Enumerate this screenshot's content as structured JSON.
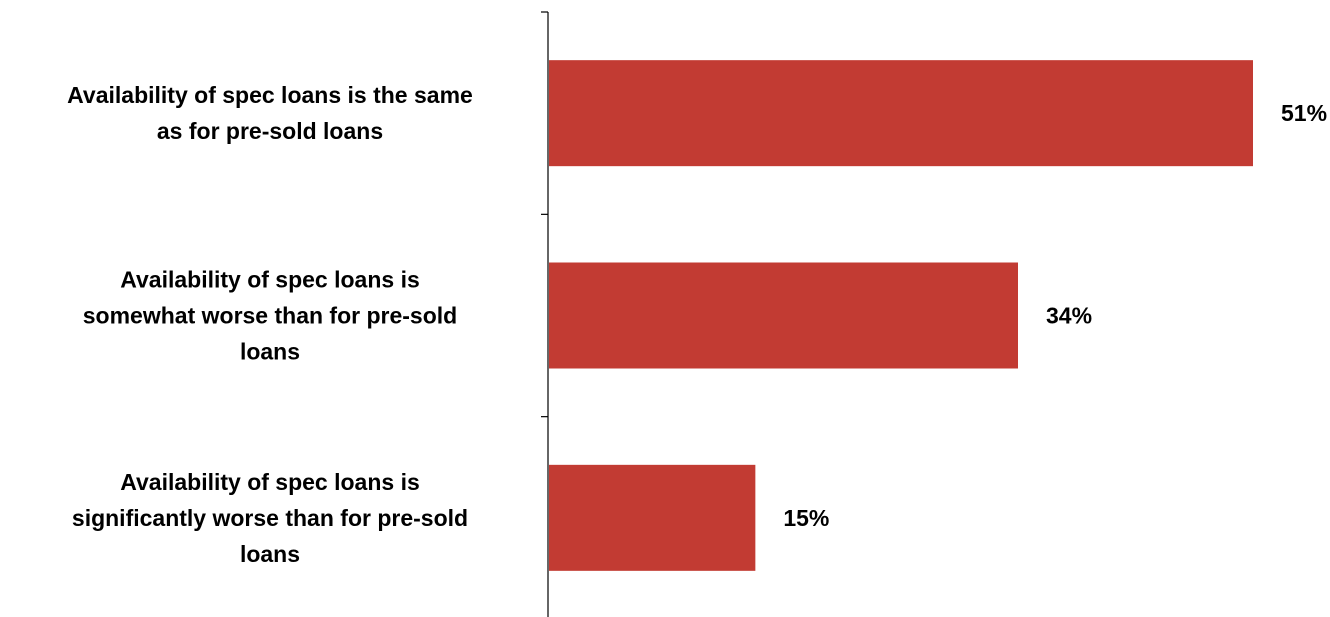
{
  "chart_data": {
    "type": "bar",
    "orientation": "horizontal",
    "categories": [
      [
        "Availability of spec loans is the same",
        "as for pre-sold loans"
      ],
      [
        "Availability of spec loans is",
        "somewhat worse than for pre-sold",
        "loans"
      ],
      [
        "Availability of spec loans is",
        "significantly worse than for pre-sold",
        "loans"
      ]
    ],
    "values": [
      51,
      34,
      15
    ],
    "data_labels": [
      "51%",
      "34%",
      "15%"
    ],
    "xlim": [
      0,
      51
    ],
    "grid": false,
    "legend": "none",
    "colors": {
      "bar": "#C23B33",
      "axis": "#000000",
      "text": "#000000"
    }
  }
}
